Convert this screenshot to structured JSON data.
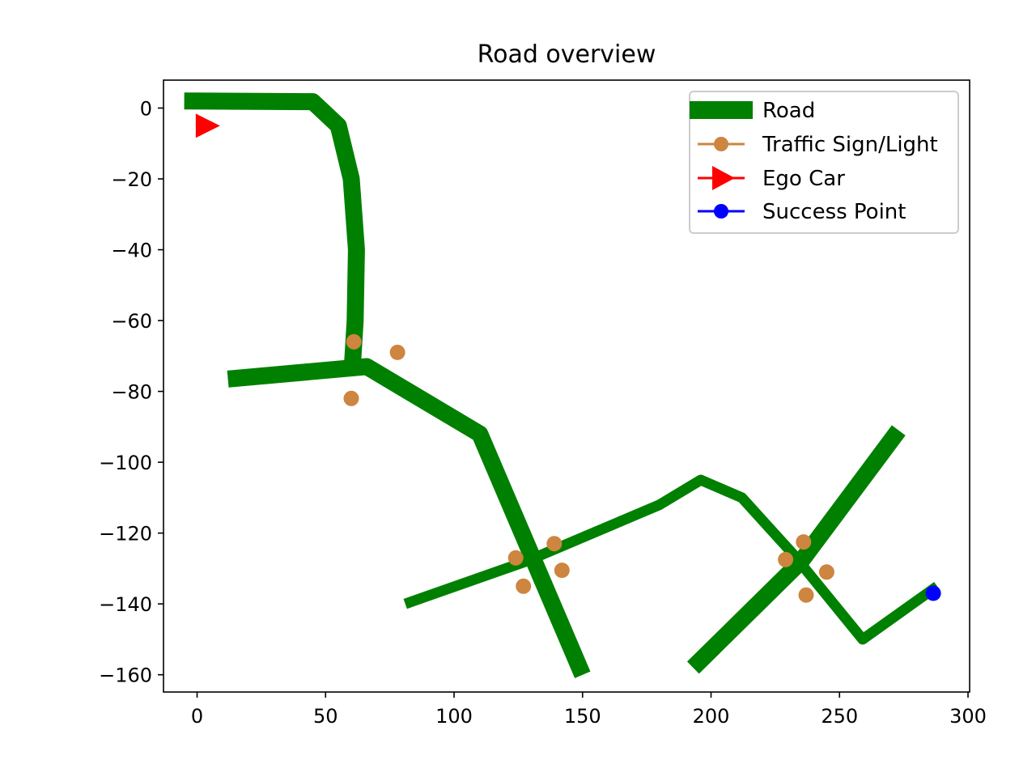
{
  "chart_data": {
    "type": "line",
    "title": "Road overview",
    "xlabel": "",
    "ylabel": "",
    "xlim": [
      -13,
      301
    ],
    "ylim": [
      -165,
      8
    ],
    "x_ticks": [
      0,
      50,
      100,
      150,
      200,
      250,
      300
    ],
    "y_ticks": [
      0,
      -20,
      -40,
      -60,
      -80,
      -100,
      -120,
      -140,
      -160
    ],
    "x_tick_labels": [
      "0",
      "50",
      "100",
      "150",
      "200",
      "250",
      "300"
    ],
    "y_tick_labels": [
      "0",
      "−20",
      "−40",
      "−60",
      "−80",
      "−100",
      "−120",
      "−140",
      "−160"
    ],
    "legend": {
      "placement": "upper right",
      "entries": [
        "Road",
        "Traffic Sign/Light",
        "Ego Car",
        "Success Point"
      ]
    },
    "colors": {
      "road": "#008000",
      "traffic": "#cd853f",
      "ego": "#ff0000",
      "success": "#0000ff"
    },
    "roads": [
      {
        "width": "wide",
        "points": [
          [
            -5,
            2
          ],
          [
            45,
            1.8
          ],
          [
            55,
            -5
          ],
          [
            60,
            -20
          ],
          [
            62,
            -40
          ],
          [
            61.5,
            -60
          ],
          [
            60.5,
            -72
          ]
        ]
      },
      {
        "width": "wide",
        "points": [
          [
            12,
            -76.5
          ],
          [
            66,
            -73
          ],
          [
            110,
            -92
          ],
          [
            150,
            -160
          ]
        ]
      },
      {
        "width": "wide",
        "points": [
          [
            193,
            -158
          ],
          [
            235,
            -128
          ],
          [
            273,
            -91
          ]
        ]
      },
      {
        "width": "narrow",
        "points": [
          [
            81,
            -140
          ],
          [
            128,
            -128
          ],
          [
            180,
            -112
          ],
          [
            196,
            -105
          ],
          [
            212,
            -110
          ],
          [
            232,
            -126
          ],
          [
            259,
            -150
          ],
          [
            288,
            -135
          ]
        ]
      }
    ],
    "traffic_lights": [
      [
        61,
        -66
      ],
      [
        78,
        -69
      ],
      [
        60,
        -82
      ],
      [
        124,
        -127
      ],
      [
        139,
        -123
      ],
      [
        127,
        -135
      ],
      [
        142,
        -130.5
      ],
      [
        229,
        -127.5
      ],
      [
        236,
        -122.5
      ],
      [
        237,
        -137.5
      ],
      [
        245,
        -131
      ]
    ],
    "ego_car": [
      2,
      -5
    ],
    "success_point": [
      286.5,
      -137
    ]
  }
}
